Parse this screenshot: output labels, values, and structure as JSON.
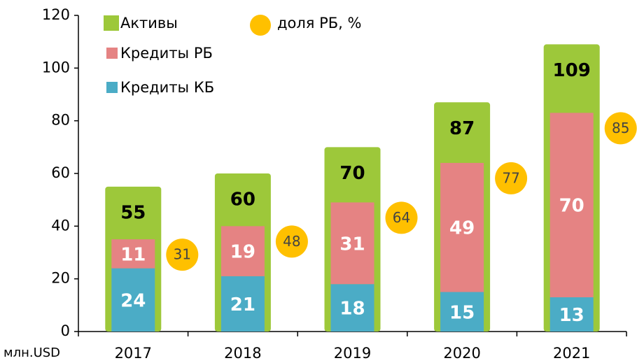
{
  "chart_data": {
    "type": "bar",
    "x_label": "млн.USD",
    "categories": [
      "2017",
      "2018",
      "2019",
      "2020",
      "2021"
    ],
    "series": [
      {
        "name": "Активы",
        "color": "#9dc83a",
        "values": [
          55,
          60,
          70,
          87,
          109
        ]
      },
      {
        "name": "Кредиты РБ",
        "color": "#e58383",
        "values": [
          11,
          19,
          31,
          49,
          70
        ]
      },
      {
        "name": "Кредиты КБ",
        "color": "#4bacc6",
        "values": [
          24,
          21,
          18,
          15,
          13
        ]
      },
      {
        "name": "доля РБ, %",
        "color": "#ffc000",
        "values": [
          31,
          48,
          64,
          77,
          85
        ]
      }
    ],
    "ylim": [
      0,
      120
    ],
    "yticks": [
      0,
      20,
      40,
      60,
      80,
      100,
      120
    ]
  }
}
